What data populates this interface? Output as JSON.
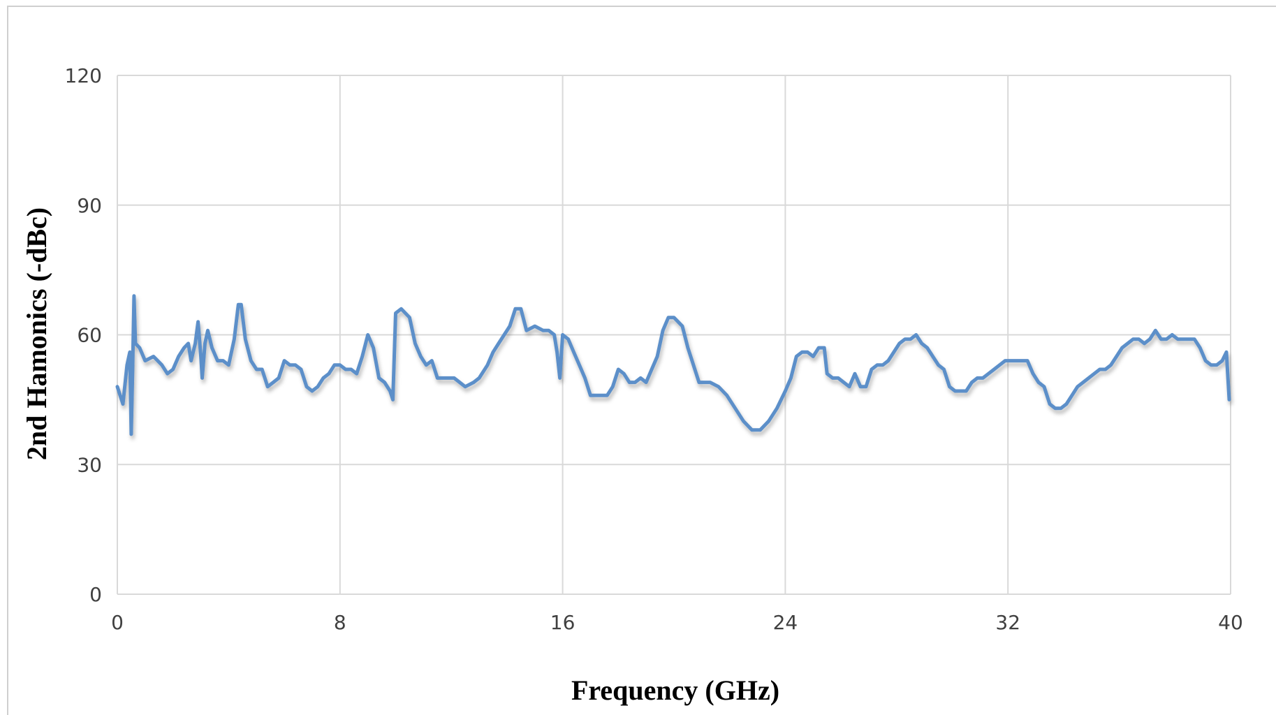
{
  "chart_data": {
    "type": "line",
    "title": "",
    "xlabel": "Frequency (GHz)",
    "ylabel": "2nd Hamonics (-dBc)",
    "xlim": [
      0,
      40
    ],
    "ylim": [
      0,
      120
    ],
    "xticks": [
      0,
      8,
      16,
      24,
      32,
      40
    ],
    "yticks": [
      0,
      30,
      60,
      90,
      120
    ],
    "grid": true,
    "legend": "none",
    "series": [
      {
        "color": "#5b8fc9",
        "points": [
          [
            0.0,
            48
          ],
          [
            0.2,
            44
          ],
          [
            0.35,
            53
          ],
          [
            0.45,
            56
          ],
          [
            0.5,
            37
          ],
          [
            0.55,
            52
          ],
          [
            0.6,
            69
          ],
          [
            0.65,
            58
          ],
          [
            0.8,
            57
          ],
          [
            1.0,
            54
          ],
          [
            1.3,
            55
          ],
          [
            1.6,
            53
          ],
          [
            1.8,
            51
          ],
          [
            2.0,
            52
          ],
          [
            2.2,
            55
          ],
          [
            2.4,
            57
          ],
          [
            2.55,
            58
          ],
          [
            2.65,
            54
          ],
          [
            2.8,
            58
          ],
          [
            2.9,
            63
          ],
          [
            3.0,
            55
          ],
          [
            3.05,
            50
          ],
          [
            3.15,
            58
          ],
          [
            3.25,
            61
          ],
          [
            3.4,
            57
          ],
          [
            3.6,
            54
          ],
          [
            3.8,
            54
          ],
          [
            4.0,
            53
          ],
          [
            4.2,
            59
          ],
          [
            4.35,
            67
          ],
          [
            4.45,
            67
          ],
          [
            4.6,
            59
          ],
          [
            4.8,
            54
          ],
          [
            5.0,
            52
          ],
          [
            5.2,
            52
          ],
          [
            5.4,
            48
          ],
          [
            5.6,
            49
          ],
          [
            5.8,
            50
          ],
          [
            6.0,
            54
          ],
          [
            6.2,
            53
          ],
          [
            6.4,
            53
          ],
          [
            6.6,
            52
          ],
          [
            6.8,
            48
          ],
          [
            7.0,
            47
          ],
          [
            7.2,
            48
          ],
          [
            7.4,
            50
          ],
          [
            7.6,
            51
          ],
          [
            7.8,
            53
          ],
          [
            8.0,
            53
          ],
          [
            8.2,
            52
          ],
          [
            8.4,
            52
          ],
          [
            8.6,
            51
          ],
          [
            8.8,
            55
          ],
          [
            9.0,
            60
          ],
          [
            9.2,
            57
          ],
          [
            9.4,
            50
          ],
          [
            9.6,
            49
          ],
          [
            9.8,
            47
          ],
          [
            9.9,
            45
          ],
          [
            10.0,
            65
          ],
          [
            10.2,
            66
          ],
          [
            10.5,
            64
          ],
          [
            10.7,
            58
          ],
          [
            10.9,
            55
          ],
          [
            11.1,
            53
          ],
          [
            11.3,
            54
          ],
          [
            11.5,
            50
          ],
          [
            11.7,
            50
          ],
          [
            11.9,
            50
          ],
          [
            12.1,
            50
          ],
          [
            12.3,
            49
          ],
          [
            12.5,
            48
          ],
          [
            12.8,
            49
          ],
          [
            13.0,
            50
          ],
          [
            13.3,
            53
          ],
          [
            13.5,
            56
          ],
          [
            13.7,
            58
          ],
          [
            13.9,
            60
          ],
          [
            14.1,
            62
          ],
          [
            14.3,
            66
          ],
          [
            14.5,
            66
          ],
          [
            14.7,
            61
          ],
          [
            15.0,
            62
          ],
          [
            15.3,
            61
          ],
          [
            15.5,
            61
          ],
          [
            15.7,
            60
          ],
          [
            15.8,
            56
          ],
          [
            15.9,
            50
          ],
          [
            16.0,
            60
          ],
          [
            16.2,
            59
          ],
          [
            16.4,
            56
          ],
          [
            16.6,
            53
          ],
          [
            16.8,
            50
          ],
          [
            17.0,
            46
          ],
          [
            17.3,
            46
          ],
          [
            17.6,
            46
          ],
          [
            17.8,
            48
          ],
          [
            18.0,
            52
          ],
          [
            18.2,
            51
          ],
          [
            18.4,
            49
          ],
          [
            18.6,
            49
          ],
          [
            18.8,
            50
          ],
          [
            19.0,
            49
          ],
          [
            19.2,
            52
          ],
          [
            19.4,
            55
          ],
          [
            19.6,
            61
          ],
          [
            19.8,
            64
          ],
          [
            20.0,
            64
          ],
          [
            20.3,
            62
          ],
          [
            20.5,
            57
          ],
          [
            20.7,
            53
          ],
          [
            20.9,
            49
          ],
          [
            21.1,
            49
          ],
          [
            21.3,
            49
          ],
          [
            21.6,
            48
          ],
          [
            21.9,
            46
          ],
          [
            22.2,
            43
          ],
          [
            22.5,
            40
          ],
          [
            22.8,
            38
          ],
          [
            23.1,
            38
          ],
          [
            23.4,
            40
          ],
          [
            23.7,
            43
          ],
          [
            24.0,
            47
          ],
          [
            24.2,
            50
          ],
          [
            24.4,
            55
          ],
          [
            24.6,
            56
          ],
          [
            24.8,
            56
          ],
          [
            25.0,
            55
          ],
          [
            25.2,
            57
          ],
          [
            25.4,
            57
          ],
          [
            25.5,
            51
          ],
          [
            25.7,
            50
          ],
          [
            25.9,
            50
          ],
          [
            26.1,
            49
          ],
          [
            26.3,
            48
          ],
          [
            26.5,
            51
          ],
          [
            26.7,
            48
          ],
          [
            26.9,
            48
          ],
          [
            27.1,
            52
          ],
          [
            27.3,
            53
          ],
          [
            27.5,
            53
          ],
          [
            27.7,
            54
          ],
          [
            27.9,
            56
          ],
          [
            28.1,
            58
          ],
          [
            28.3,
            59
          ],
          [
            28.5,
            59
          ],
          [
            28.7,
            60
          ],
          [
            28.9,
            58
          ],
          [
            29.1,
            57
          ],
          [
            29.3,
            55
          ],
          [
            29.5,
            53
          ],
          [
            29.7,
            52
          ],
          [
            29.9,
            48
          ],
          [
            30.1,
            47
          ],
          [
            30.3,
            47
          ],
          [
            30.5,
            47
          ],
          [
            30.7,
            49
          ],
          [
            30.9,
            50
          ],
          [
            31.1,
            50
          ],
          [
            31.3,
            51
          ],
          [
            31.5,
            52
          ],
          [
            31.7,
            53
          ],
          [
            31.9,
            54
          ],
          [
            32.1,
            54
          ],
          [
            32.3,
            54
          ],
          [
            32.5,
            54
          ],
          [
            32.7,
            54
          ],
          [
            32.9,
            51
          ],
          [
            33.1,
            49
          ],
          [
            33.3,
            48
          ],
          [
            33.5,
            44
          ],
          [
            33.7,
            43
          ],
          [
            33.9,
            43
          ],
          [
            34.1,
            44
          ],
          [
            34.3,
            46
          ],
          [
            34.5,
            48
          ],
          [
            34.7,
            49
          ],
          [
            34.9,
            50
          ],
          [
            35.1,
            51
          ],
          [
            35.3,
            52
          ],
          [
            35.5,
            52
          ],
          [
            35.7,
            53
          ],
          [
            35.9,
            55
          ],
          [
            36.1,
            57
          ],
          [
            36.3,
            58
          ],
          [
            36.5,
            59
          ],
          [
            36.7,
            59
          ],
          [
            36.9,
            58
          ],
          [
            37.1,
            59
          ],
          [
            37.3,
            61
          ],
          [
            37.5,
            59
          ],
          [
            37.7,
            59
          ],
          [
            37.9,
            60
          ],
          [
            38.1,
            59
          ],
          [
            38.3,
            59
          ],
          [
            38.5,
            59
          ],
          [
            38.7,
            59
          ],
          [
            38.9,
            57
          ],
          [
            39.1,
            54
          ],
          [
            39.3,
            53
          ],
          [
            39.5,
            53
          ],
          [
            39.7,
            54
          ],
          [
            39.85,
            56
          ],
          [
            39.95,
            45
          ]
        ]
      }
    ]
  }
}
